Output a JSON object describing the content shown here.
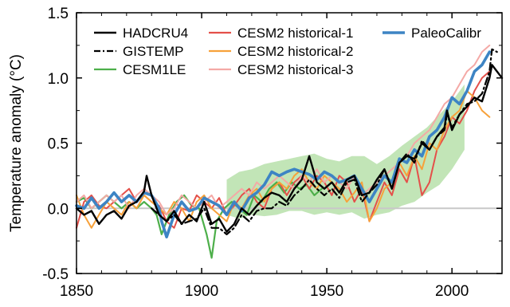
{
  "chart_data": {
    "type": "line",
    "title": "",
    "xlabel": "",
    "ylabel": "Temperature anomaly (°C)",
    "xlim": [
      1850,
      2020
    ],
    "ylim": [
      -0.5,
      1.5
    ],
    "x_ticks": [
      1850,
      1900,
      1950,
      2000
    ],
    "y_ticks": [
      -0.5,
      0.0,
      0.5,
      1.0,
      1.5
    ],
    "x_tick_labels": [
      "1850",
      "1900",
      "1950",
      "2000"
    ],
    "y_tick_labels": [
      "-0.5",
      "0.0",
      "0.5",
      "1.0",
      "1.5"
    ],
    "grid": false,
    "legend_position": "top",
    "reference_line": {
      "y": 0.0,
      "color": "#c8c8c8"
    },
    "band": {
      "color": "#b7e0aa",
      "x": [
        1910,
        1915,
        1920,
        1925,
        1930,
        1935,
        1940,
        1945,
        1950,
        1955,
        1960,
        1965,
        1970,
        1975,
        1980,
        1985,
        1990,
        1995,
        2000,
        2005
      ],
      "lower": [
        -0.05,
        -0.08,
        -0.05,
        -0.06,
        -0.05,
        -0.02,
        -0.02,
        -0.05,
        -0.03,
        -0.05,
        -0.03,
        -0.08,
        -0.05,
        -0.03,
        0.02,
        0.05,
        0.12,
        0.18,
        0.3,
        0.45
      ],
      "upper": [
        0.22,
        0.28,
        0.3,
        0.34,
        0.36,
        0.38,
        0.4,
        0.42,
        0.38,
        0.36,
        0.4,
        0.4,
        0.34,
        0.4,
        0.48,
        0.55,
        0.62,
        0.72,
        0.82,
        0.95
      ]
    },
    "series": [
      {
        "name": "HADCRU4",
        "color": "#000000",
        "width": 2.4,
        "dash": "",
        "x": [
          1850,
          1853,
          1856,
          1859,
          1862,
          1865,
          1868,
          1871,
          1874,
          1877,
          1878,
          1880,
          1883,
          1886,
          1889,
          1892,
          1895,
          1898,
          1901,
          1904,
          1907,
          1910,
          1913,
          1916,
          1919,
          1922,
          1925,
          1928,
          1931,
          1934,
          1937,
          1940,
          1943,
          1946,
          1949,
          1952,
          1955,
          1958,
          1961,
          1964,
          1967,
          1970,
          1973,
          1976,
          1979,
          1982,
          1985,
          1988,
          1991,
          1994,
          1997,
          1998,
          2000,
          2003,
          2006,
          2009,
          2012,
          2015,
          2016,
          2018,
          2020
        ],
        "y": [
          0.0,
          -0.05,
          -0.02,
          -0.12,
          -0.05,
          -0.02,
          -0.08,
          0.02,
          0.05,
          0.13,
          0.25,
          0.1,
          -0.05,
          -0.1,
          -0.02,
          -0.12,
          -0.05,
          -0.1,
          0.05,
          -0.12,
          -0.08,
          -0.18,
          -0.12,
          0.0,
          -0.05,
          0.02,
          0.08,
          0.12,
          0.1,
          0.05,
          0.15,
          0.22,
          0.4,
          0.2,
          0.15,
          0.2,
          0.12,
          0.22,
          0.25,
          0.1,
          0.12,
          0.22,
          0.3,
          0.15,
          0.35,
          0.4,
          0.38,
          0.5,
          0.45,
          0.55,
          0.62,
          0.75,
          0.6,
          0.72,
          0.78,
          0.85,
          0.82,
          1.0,
          1.1,
          1.05,
          1.0
        ]
      },
      {
        "name": "GISTEMP",
        "color": "#000000",
        "width": 2.2,
        "dash": "9,4,2,4",
        "x": [
          1880,
          1883,
          1886,
          1889,
          1892,
          1895,
          1898,
          1901,
          1904,
          1907,
          1910,
          1913,
          1916,
          1919,
          1922,
          1925,
          1928,
          1931,
          1934,
          1937,
          1940,
          1943,
          1946,
          1949,
          1952,
          1955,
          1958,
          1961,
          1964,
          1967,
          1970,
          1973,
          1976,
          1979,
          1982,
          1985,
          1988,
          1991,
          1994,
          1997,
          1998,
          2000,
          2003,
          2006,
          2009,
          2012,
          2015,
          2016,
          2018
        ],
        "y": [
          0.0,
          -0.05,
          -0.1,
          -0.05,
          -0.12,
          -0.1,
          -0.08,
          0.0,
          -0.15,
          -0.15,
          -0.2,
          -0.15,
          -0.05,
          -0.1,
          -0.02,
          0.0,
          0.0,
          0.05,
          0.02,
          0.1,
          0.15,
          0.22,
          0.15,
          0.1,
          0.15,
          0.08,
          0.2,
          0.22,
          0.05,
          0.12,
          0.18,
          0.3,
          0.15,
          0.35,
          0.42,
          0.35,
          0.52,
          0.45,
          0.55,
          0.6,
          0.72,
          0.62,
          0.72,
          0.8,
          0.82,
          0.88,
          1.05,
          1.22,
          1.2
        ]
      },
      {
        "name": "CESM1LE",
        "color": "#4daf4a",
        "width": 2.2,
        "dash": "",
        "x": [
          1850,
          1853,
          1856,
          1859,
          1862,
          1865,
          1868,
          1871,
          1874,
          1877,
          1880,
          1882,
          1884,
          1887,
          1890,
          1893,
          1896,
          1899,
          1902,
          1904,
          1906,
          1909,
          1912,
          1915,
          1918,
          1921,
          1924,
          1927,
          1930,
          1933,
          1936,
          1939,
          1942,
          1945,
          1948
        ],
        "y": [
          0.05,
          0.08,
          0.0,
          0.05,
          0.1,
          0.05,
          0.0,
          0.05,
          0.0,
          0.05,
          0.0,
          -0.05,
          -0.2,
          -0.05,
          0.05,
          0.1,
          0.02,
          0.0,
          -0.2,
          -0.38,
          -0.1,
          0.0,
          0.05,
          0.0,
          -0.05,
          0.1,
          0.05,
          0.15,
          0.2,
          0.12,
          0.2,
          0.15,
          0.18,
          0.1,
          0.15
        ]
      },
      {
        "name": "CESM2 historical-1",
        "color": "#e4504a",
        "width": 2.0,
        "dash": "",
        "x": [
          1850,
          1853,
          1856,
          1859,
          1862,
          1865,
          1868,
          1871,
          1874,
          1877,
          1880,
          1883,
          1886,
          1889,
          1892,
          1895,
          1898,
          1901,
          1904,
          1907,
          1910,
          1913,
          1916,
          1919,
          1922,
          1925,
          1928,
          1931,
          1934,
          1937,
          1940,
          1943,
          1946,
          1949,
          1952,
          1955,
          1958,
          1961,
          1964,
          1967,
          1970,
          1973,
          1976,
          1979,
          1982,
          1985,
          1988,
          1991,
          1994,
          1997,
          2000,
          2003,
          2006,
          2009,
          2012,
          2015
        ],
        "y": [
          -0.15,
          0.05,
          0.1,
          0.02,
          0.0,
          0.05,
          0.1,
          0.15,
          0.05,
          0.1,
          0.05,
          0.02,
          -0.1,
          -0.15,
          0.0,
          -0.02,
          0.1,
          0.05,
          0.0,
          0.08,
          -0.05,
          0.02,
          0.1,
          0.15,
          0.05,
          0.0,
          0.15,
          0.2,
          0.1,
          0.2,
          0.25,
          0.15,
          0.25,
          0.2,
          0.1,
          0.25,
          0.2,
          0.05,
          0.15,
          -0.1,
          0.05,
          0.2,
          0.1,
          0.3,
          0.2,
          0.4,
          0.1,
          0.2,
          0.45,
          0.55,
          0.7,
          0.65,
          0.75,
          0.9,
          1.0,
          1.05
        ]
      },
      {
        "name": "CESM2 historical-2",
        "color": "#f7a13a",
        "width": 2.0,
        "dash": "",
        "x": [
          1850,
          1853,
          1856,
          1859,
          1862,
          1865,
          1868,
          1871,
          1874,
          1877,
          1880,
          1883,
          1886,
          1889,
          1892,
          1895,
          1898,
          1901,
          1904,
          1907,
          1910,
          1913,
          1916,
          1919,
          1922,
          1925,
          1928,
          1931,
          1934,
          1937,
          1940,
          1943,
          1946,
          1949,
          1952,
          1955,
          1958,
          1961,
          1964,
          1967,
          1970,
          1973,
          1976,
          1979,
          1982,
          1985,
          1988,
          1991,
          1994,
          1997,
          2000,
          2003,
          2006,
          2009,
          2012,
          2015
        ],
        "y": [
          0.1,
          -0.05,
          -0.15,
          -0.05,
          0.05,
          0.0,
          -0.05,
          0.05,
          0.0,
          0.1,
          0.05,
          0.0,
          -0.05,
          0.05,
          0.0,
          -0.1,
          0.05,
          0.1,
          0.0,
          -0.05,
          -0.1,
          0.05,
          0.0,
          0.1,
          0.15,
          0.05,
          0.15,
          0.2,
          0.15,
          0.25,
          0.3,
          0.2,
          0.15,
          0.25,
          0.2,
          0.15,
          0.05,
          0.12,
          0.2,
          -0.1,
          0.0,
          0.15,
          0.2,
          0.35,
          0.25,
          0.4,
          0.3,
          0.5,
          0.45,
          0.6,
          0.7,
          0.75,
          0.9,
          0.85,
          0.75,
          0.7
        ]
      },
      {
        "name": "CESM2 historical-3",
        "color": "#f4a9a6",
        "width": 2.0,
        "dash": "",
        "x": [
          1850,
          1853,
          1856,
          1859,
          1862,
          1865,
          1868,
          1871,
          1874,
          1877,
          1880,
          1883,
          1886,
          1889,
          1892,
          1895,
          1898,
          1901,
          1904,
          1907,
          1910,
          1913,
          1916,
          1919,
          1922,
          1925,
          1928,
          1931,
          1934,
          1937,
          1940,
          1943,
          1946,
          1949,
          1952,
          1955,
          1958,
          1961,
          1964,
          1967,
          1970,
          1973,
          1976,
          1979,
          1982,
          1985,
          1988,
          1991,
          1994,
          1997,
          2000,
          2003,
          2006,
          2009,
          2012,
          2015
        ],
        "y": [
          0.05,
          0.1,
          0.0,
          0.05,
          0.1,
          0.05,
          0.1,
          0.0,
          0.1,
          0.15,
          0.1,
          0.05,
          -0.05,
          0.0,
          0.1,
          0.05,
          0.0,
          0.05,
          0.1,
          0.0,
          0.05,
          0.1,
          0.15,
          0.1,
          0.2,
          0.15,
          0.2,
          0.25,
          0.2,
          0.15,
          0.25,
          0.2,
          0.3,
          0.2,
          0.25,
          0.2,
          0.15,
          0.25,
          0.1,
          0.15,
          0.2,
          0.25,
          0.3,
          0.35,
          0.4,
          0.5,
          0.55,
          0.6,
          0.7,
          0.8,
          0.85,
          0.95,
          1.05,
          1.1,
          1.2,
          1.25
        ]
      },
      {
        "name": "PaleoCalibr",
        "color": "#3d84c4",
        "width": 3.6,
        "dash": "",
        "x": [
          1850,
          1853,
          1856,
          1859,
          1862,
          1865,
          1868,
          1871,
          1874,
          1877,
          1880,
          1883,
          1884,
          1886,
          1889,
          1892,
          1895,
          1898,
          1901,
          1904,
          1907,
          1910,
          1913,
          1916,
          1919,
          1922,
          1925,
          1928,
          1931,
          1934,
          1937,
          1940,
          1943,
          1946,
          1949,
          1952,
          1955,
          1958,
          1961,
          1964,
          1967,
          1970,
          1973,
          1976,
          1979,
          1982,
          1985,
          1988,
          1991,
          1994,
          1997,
          2000,
          2003,
          2006,
          2009,
          2012,
          2015
        ],
        "y": [
          0.02,
          0.0,
          0.08,
          0.0,
          0.05,
          0.12,
          0.05,
          0.1,
          0.05,
          0.12,
          0.1,
          0.0,
          -0.1,
          -0.22,
          -0.05,
          0.05,
          -0.02,
          0.0,
          0.08,
          0.05,
          0.02,
          -0.05,
          0.05,
          -0.02,
          0.08,
          0.12,
          0.18,
          0.28,
          0.25,
          0.28,
          0.3,
          0.28,
          0.26,
          0.22,
          0.28,
          0.25,
          0.2,
          0.22,
          0.25,
          0.15,
          0.05,
          0.15,
          0.25,
          0.2,
          0.38,
          0.35,
          0.45,
          0.4,
          0.55,
          0.6,
          0.7,
          0.85,
          0.8,
          0.9,
          1.05,
          1.1,
          1.2
        ]
      }
    ]
  }
}
